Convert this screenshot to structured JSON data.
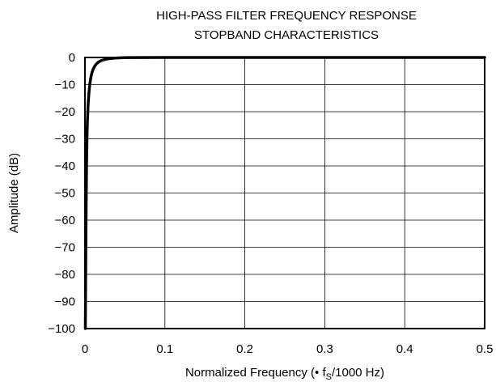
{
  "chart_data": {
    "type": "line",
    "title": "HIGH-PASS FILTER FREQUENCY RESPONSE",
    "subtitle": "STOPBAND CHARACTERISTICS",
    "xlabel": {
      "prefix": "Normalized Frequency (• f",
      "sub": "S",
      "suffix": "/1000 Hz)"
    },
    "ylabel": "Amplitude (dB)",
    "xlim": [
      0,
      0.5
    ],
    "ylim": [
      -100,
      0
    ],
    "xticks": [
      "0",
      "0.1",
      "0.2",
      "0.3",
      "0.4",
      "0.5"
    ],
    "yticks": [
      "0",
      "−10",
      "−20",
      "−30",
      "−40",
      "−50",
      "−60",
      "−70",
      "−80",
      "−90",
      "−100"
    ],
    "xtick_values": [
      0,
      0.1,
      0.2,
      0.3,
      0.4,
      0.5
    ],
    "ytick_values": [
      0,
      -10,
      -20,
      -30,
      -40,
      -50,
      -60,
      -70,
      -80,
      -90,
      -100
    ],
    "grid": true,
    "series": [
      {
        "x": [
          0.0005,
          0.001,
          0.0015,
          0.002,
          0.0025,
          0.003,
          0.004,
          0.005,
          0.006,
          0.007,
          0.008,
          0.009,
          0.01,
          0.012,
          0.014,
          0.016,
          0.018,
          0.02,
          0.023,
          0.026,
          0.03,
          0.035,
          0.04,
          0.045,
          0.05,
          0.055,
          0.06,
          0.1,
          0.2,
          0.3,
          0.4,
          0.5
        ],
        "y": [
          -100,
          -75,
          -55,
          -40,
          -30,
          -24,
          -17,
          -13,
          -10,
          -8,
          -6.5,
          -5.4,
          -4.5,
          -3.3,
          -2.5,
          -1.9,
          -1.5,
          -1.2,
          -0.9,
          -0.65,
          -0.45,
          -0.3,
          -0.2,
          -0.12,
          -0.07,
          -0.04,
          -0.02,
          0,
          0,
          0,
          0,
          0
        ]
      }
    ]
  }
}
